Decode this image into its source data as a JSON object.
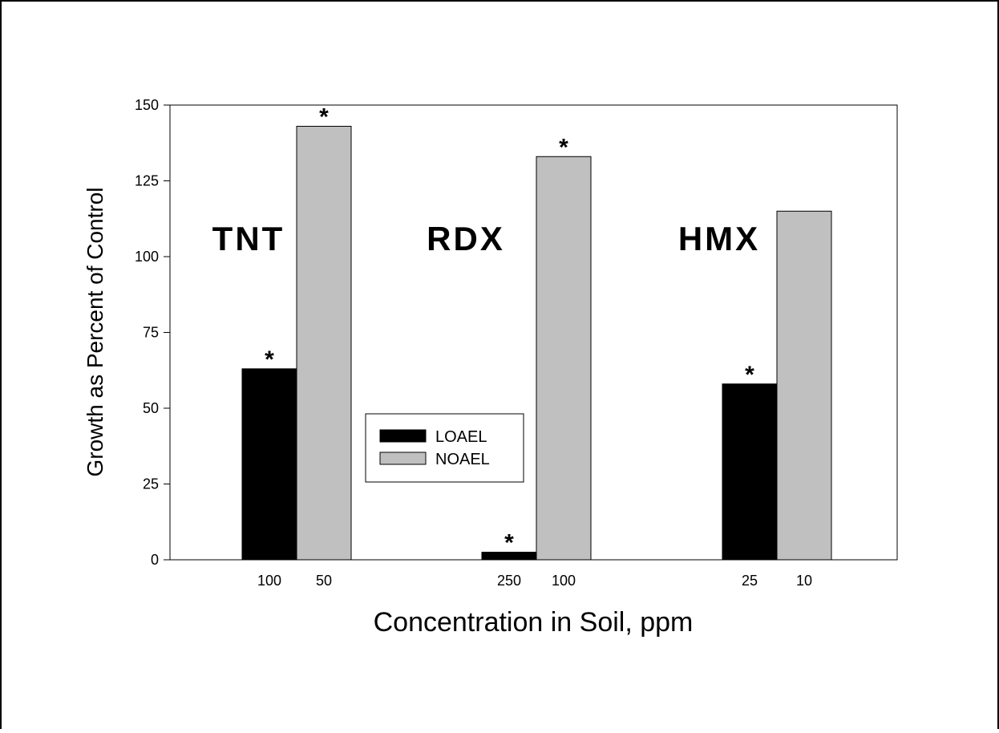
{
  "chart_data": {
    "type": "bar",
    "xlabel": "Concentration in Soil, ppm",
    "ylabel": "Growth as Percent of Control",
    "ylim": [
      0,
      150
    ],
    "yticks": [
      0,
      25,
      50,
      75,
      100,
      125,
      150
    ],
    "grid": false,
    "legend_position": "center",
    "groups": [
      {
        "label": "TNT",
        "bars": [
          {
            "series": "LOAEL",
            "concentration": "100",
            "value": 63,
            "significant": "*"
          },
          {
            "series": "NOAEL",
            "concentration": "50",
            "value": 143,
            "significant": "*"
          }
        ]
      },
      {
        "label": "RDX",
        "bars": [
          {
            "series": "LOAEL",
            "concentration": "250",
            "value": 2.5,
            "significant": "*"
          },
          {
            "series": "NOAEL",
            "concentration": "100",
            "value": 133,
            "significant": "*"
          }
        ]
      },
      {
        "label": "HMX",
        "bars": [
          {
            "series": "LOAEL",
            "concentration": "25",
            "value": 58,
            "significant": "*"
          },
          {
            "series": "NOAEL",
            "concentration": "10",
            "value": 115,
            "significant": ""
          }
        ]
      }
    ],
    "series": [
      {
        "name": "LOAEL",
        "color": "#000000"
      },
      {
        "name": "NOAEL",
        "color": "#c0c0c0"
      }
    ]
  }
}
